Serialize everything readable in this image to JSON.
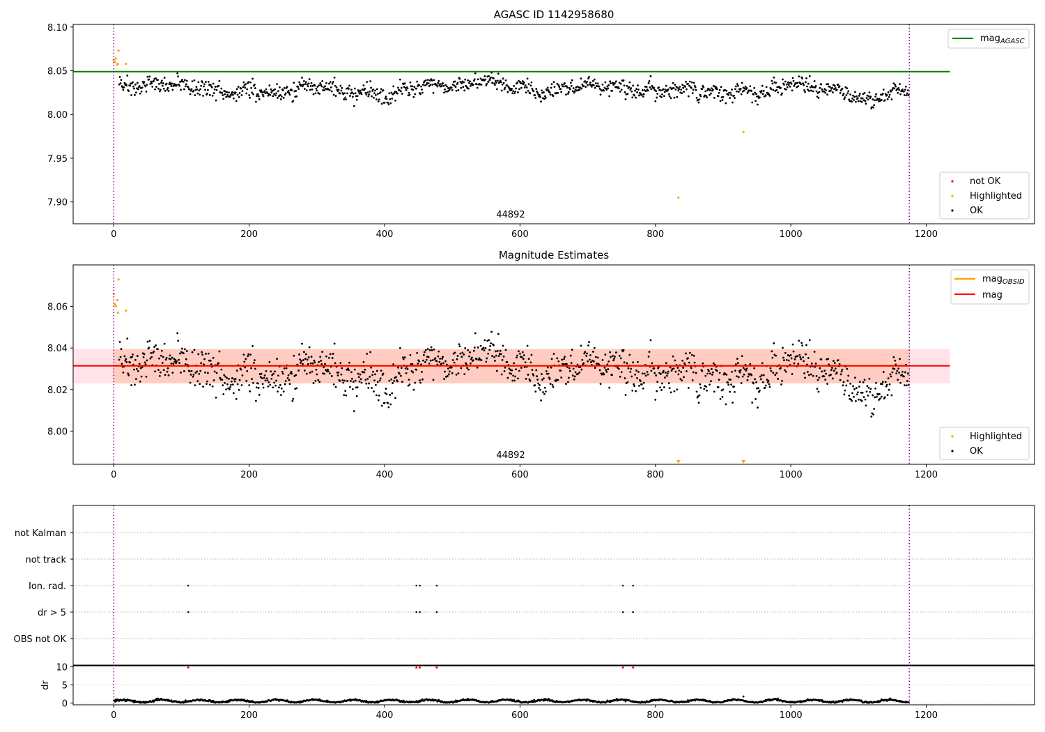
{
  "chart_data": [
    {
      "type": "scatter",
      "title": "AGASC ID 1142958680",
      "xlabel": "",
      "ylabel": "",
      "xlim": [
        -60,
        1360
      ],
      "ylim": [
        7.875,
        8.103
      ],
      "xticks": [
        0,
        200,
        400,
        600,
        800,
        1000,
        1200
      ],
      "yticks": [
        7.9,
        7.95,
        8.0,
        8.05,
        8.1
      ],
      "ytick_labels": [
        "7.90",
        "7.95",
        "8.00",
        "8.05",
        "8.10"
      ],
      "annotation": "44892",
      "annotation_x": 585,
      "vlines": [
        0,
        1175
      ],
      "reference_lines": [
        {
          "name": "mag",
          "name_sub": "AGASC",
          "value": 8.049,
          "x_range": [
            -60,
            1235
          ],
          "color": "#008000"
        }
      ],
      "legend_lines_position": "upper right",
      "legend_points_position": "lower right",
      "point_series": [
        {
          "name": "not OK",
          "color": "#ff0000"
        },
        {
          "name": "Highlighted",
          "color": "#ffa500"
        },
        {
          "name": "OK",
          "color": "#000000"
        }
      ],
      "highlighted": [
        {
          "x": 0,
          "y": 8.062
        },
        {
          "x": 2,
          "y": 8.06
        },
        {
          "x": 3,
          "y": 8.064
        },
        {
          "x": 5,
          "y": 8.057
        },
        {
          "x": 6,
          "y": 8.058
        },
        {
          "x": 7,
          "y": 8.073
        },
        {
          "x": 18,
          "y": 8.058
        },
        {
          "x": 834,
          "y": 7.905
        },
        {
          "x": 930,
          "y": 7.98
        }
      ],
      "grid": false
    },
    {
      "type": "scatter",
      "title": "Magnitude Estimates",
      "xlabel": "",
      "ylabel": "",
      "xlim": [
        -60,
        1360
      ],
      "ylim": [
        7.984,
        8.08
      ],
      "xticks": [
        0,
        200,
        400,
        600,
        800,
        1000,
        1200
      ],
      "yticks": [
        8.0,
        8.02,
        8.04,
        8.06
      ],
      "ytick_labels": [
        "8.00",
        "8.02",
        "8.04",
        "8.06"
      ],
      "annotation": "44892",
      "annotation_x": 585,
      "vlines": [
        0,
        1175
      ],
      "reference_lines": [
        {
          "name": "mag",
          "name_sub": "OBSID",
          "value": 8.0314,
          "x_range": [
            -1,
            1176
          ],
          "color": "#ffa500"
        },
        {
          "name": "mag",
          "name_sub": "",
          "value": 8.0314,
          "x_range": [
            -60,
            1235
          ],
          "color": "#ff0000"
        }
      ],
      "bands": [
        {
          "low": 8.023,
          "high": 8.0395,
          "x_range": [
            -60,
            1235
          ],
          "color": "#ffc0cb",
          "opacity": 0.45
        },
        {
          "low": 8.023,
          "high": 8.0395,
          "x_range": [
            -1,
            1176
          ],
          "color": "#ffa07a",
          "opacity": 0.35
        }
      ],
      "legend_lines_position": "upper right",
      "legend_points_position": "lower right",
      "point_series": [
        {
          "name": "Highlighted",
          "color": "#ffa500"
        },
        {
          "name": "OK",
          "color": "#000000"
        }
      ],
      "highlighted": [
        {
          "x": 0,
          "y": 8.066
        },
        {
          "x": 2,
          "y": 8.061
        },
        {
          "x": 3,
          "y": 8.06
        },
        {
          "x": 5,
          "y": 8.063
        },
        {
          "x": 6,
          "y": 8.057
        },
        {
          "x": 7,
          "y": 8.073
        },
        {
          "x": 18,
          "y": 8.058
        }
      ],
      "offscale_markers": [
        {
          "x": 834,
          "label": "below range"
        },
        {
          "x": 930,
          "label": "below range"
        }
      ],
      "grid": false
    },
    {
      "type": "scatter",
      "title": "",
      "xlabel": "",
      "ylabel": "",
      "xlim": [
        -60,
        1360
      ],
      "vlines": [
        0,
        1175
      ],
      "flag_rows": [
        "not Kalman",
        "not track",
        "Ion. rad.",
        "dr > 5",
        "OBS not OK"
      ],
      "flag_points": {
        "Ion. rad.": [
          110,
          447,
          452,
          477,
          752,
          767
        ],
        "dr > 5": [
          110,
          447,
          452,
          477,
          752,
          767
        ]
      },
      "grid": true
    },
    {
      "type": "scatter",
      "title": "",
      "xlabel": "",
      "ylabel": "dr",
      "xlim": [
        -60,
        1360
      ],
      "ylim": [
        -0.5,
        10.5
      ],
      "xticks": [
        0,
        200,
        400,
        600,
        800,
        1000,
        1200
      ],
      "yticks": [
        0,
        5,
        10
      ],
      "ytick_labels": [
        "0",
        "5",
        "10"
      ],
      "vlines": [
        0,
        1175
      ],
      "clipped_points": [
        110,
        447,
        452,
        477,
        752,
        767
      ],
      "clipped_color": "#ff0000",
      "dr_range": [
        0.0,
        1.5
      ],
      "grid": true
    }
  ]
}
